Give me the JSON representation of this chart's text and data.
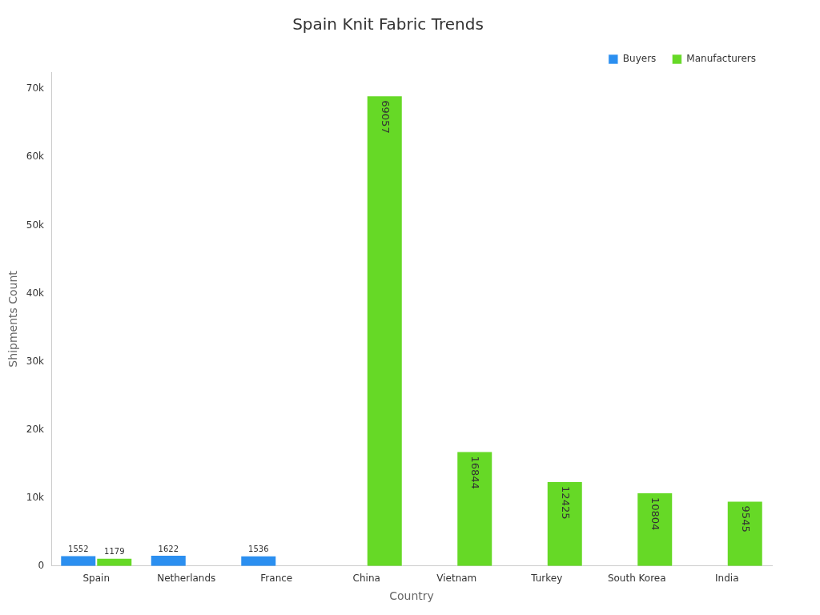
{
  "chart_data": {
    "type": "bar",
    "title": "Spain Knit Fabric Trends",
    "xlabel": "Country",
    "ylabel": "Shipments Count",
    "categories": [
      "Spain",
      "Netherlands",
      "France",
      "China",
      "Vietnam",
      "Turkey",
      "South Korea",
      "India"
    ],
    "series": [
      {
        "name": "Buyers",
        "color": "#2b8ff0",
        "values": [
          1552,
          1622,
          1536,
          null,
          null,
          null,
          null,
          null
        ]
      },
      {
        "name": "Manufacturers",
        "color": "#66d926",
        "values": [
          1179,
          null,
          null,
          69057,
          16844,
          12425,
          10804,
          9545
        ]
      }
    ],
    "ylim": [
      0,
      72500
    ],
    "yticks": [
      {
        "value": 0,
        "label": "0"
      },
      {
        "value": 10000,
        "label": "10k"
      },
      {
        "value": 20000,
        "label": "20k"
      },
      {
        "value": 30000,
        "label": "30k"
      },
      {
        "value": 40000,
        "label": "40k"
      },
      {
        "value": 50000,
        "label": "50k"
      },
      {
        "value": 60000,
        "label": "60k"
      },
      {
        "value": 70000,
        "label": "70k"
      }
    ],
    "data_labels": true,
    "grid": false,
    "legend": "top right"
  }
}
